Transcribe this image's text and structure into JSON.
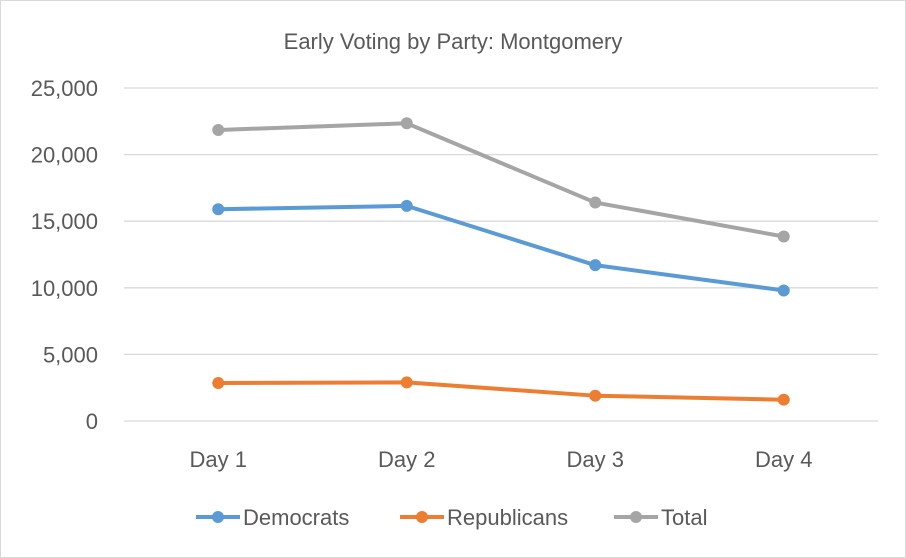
{
  "chart_data": {
    "type": "line",
    "title": "Early Voting by Party: Montgomery",
    "xlabel": "",
    "ylabel": "",
    "categories": [
      "Day 1",
      "Day 2",
      "Day 3",
      "Day 4"
    ],
    "ylim": [
      0,
      25000
    ],
    "yticks": [
      0,
      5000,
      10000,
      15000,
      20000,
      25000
    ],
    "ytick_labels": [
      "0",
      "5,000",
      "10,000",
      "15,000",
      "20,000",
      "25,000"
    ],
    "grid": true,
    "legend_position": "bottom",
    "series": [
      {
        "name": "Democrats",
        "color": "#5b9bd5",
        "values": [
          15900,
          16150,
          11700,
          9800
        ]
      },
      {
        "name": "Republicans",
        "color": "#ed7d31",
        "values": [
          2850,
          2900,
          1900,
          1600
        ]
      },
      {
        "name": "Total",
        "color": "#a5a5a5",
        "values": [
          21850,
          22350,
          16400,
          13850
        ]
      }
    ]
  }
}
